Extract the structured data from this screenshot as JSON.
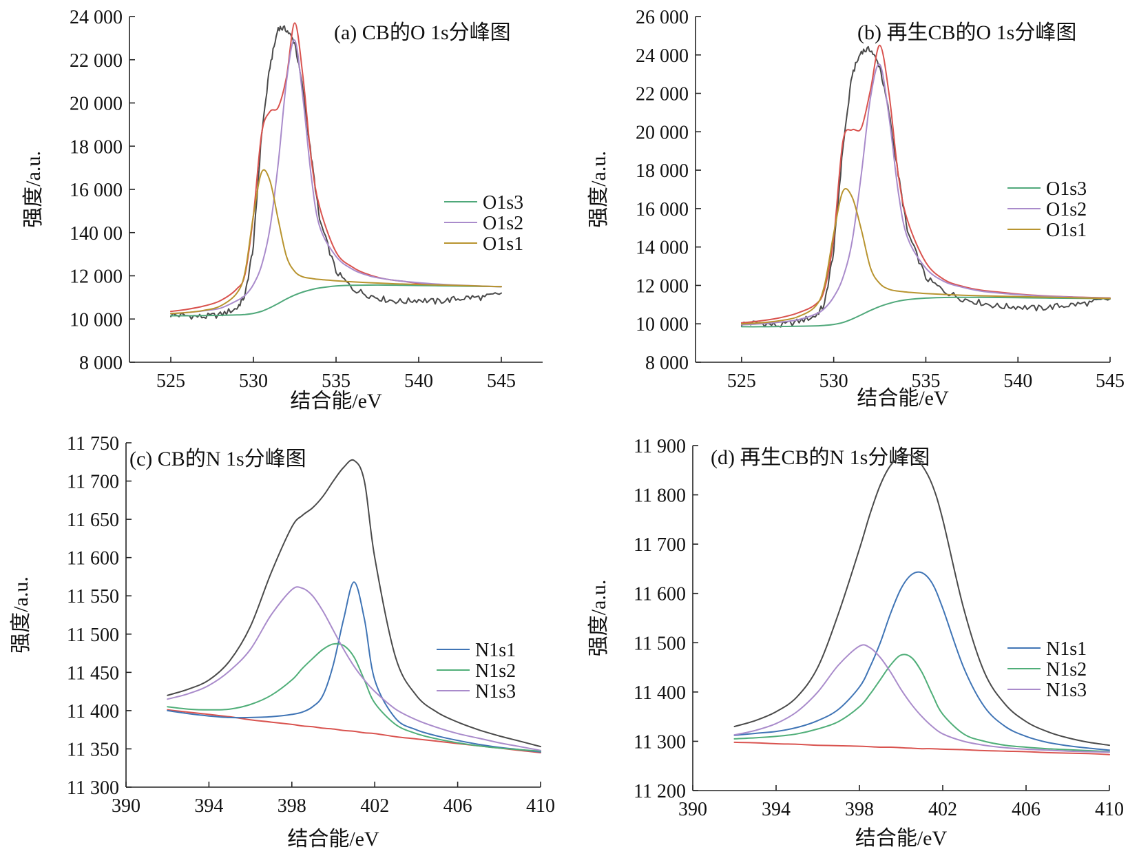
{
  "colors": {
    "fit": "#D9534F",
    "background": "#D9534F",
    "raw": "#4A4A4A",
    "O1s1": "#B8942F",
    "O1s2": "#A98BCB",
    "O1s3": "#4FA87A",
    "N1s1": "#3F74B5",
    "N1s2": "#4FAE78",
    "N1s3": "#A98BCB",
    "envelope": "#4A4A4A"
  },
  "chart_data": [
    {
      "id": "a",
      "type": "line",
      "title": "(a)  CB的O 1s分峰图",
      "xlabel": "结合能/eV",
      "ylabel": "强度/a.u.",
      "xlim": [
        522.5,
        547.5
      ],
      "ylim": [
        8000,
        24000
      ],
      "xticks": [
        525,
        530,
        535,
        540,
        545
      ],
      "xtick_labels": [
        "525",
        "530",
        "535",
        "540",
        "545"
      ],
      "yticks": [
        8000,
        10000,
        12000,
        14000,
        16000,
        18000,
        20000,
        22000,
        24000
      ],
      "ytick_labels": [
        "8 000",
        "10 000",
        "12 000",
        "140 00",
        "16 000",
        "18 000",
        "20 000",
        "22 000",
        "24 000"
      ],
      "legend": [
        "O1s3",
        "O1s2",
        "O1s1"
      ],
      "legend_position": "right-middle",
      "x": [
        525,
        526,
        527,
        528,
        529,
        529.5,
        530,
        530.5,
        531,
        531.5,
        532,
        532.5,
        533,
        533.5,
        534,
        535,
        536,
        537,
        538,
        539,
        540,
        541,
        542,
        543,
        544,
        545
      ],
      "series": [
        {
          "name": "Raw",
          "color_key": "raw",
          "values": [
            10200,
            10150,
            10100,
            10200,
            10500,
            11100,
            13400,
            18600,
            21700,
            23500,
            23400,
            22800,
            20600,
            17500,
            14600,
            12200,
            11400,
            11100,
            10900,
            10800,
            10900,
            10800,
            10900,
            11000,
            11000,
            11200
          ]
        },
        {
          "name": "Fit",
          "color_key": "fit",
          "values": [
            10350,
            10450,
            10600,
            10850,
            11400,
            12100,
            14800,
            18600,
            19600,
            19800,
            21200,
            23700,
            21200,
            17400,
            15200,
            13100,
            12400,
            12050,
            11850,
            11750,
            11650,
            11600,
            11560,
            11530,
            11510,
            11500
          ]
        },
        {
          "name": "O1s3",
          "color_key": "O1s3",
          "values": [
            10150,
            10150,
            10160,
            10170,
            10190,
            10210,
            10260,
            10360,
            10520,
            10720,
            10930,
            11110,
            11250,
            11360,
            11440,
            11530,
            11560,
            11570,
            11570,
            11560,
            11550,
            11540,
            11530,
            11520,
            11510,
            11500
          ]
        },
        {
          "name": "O1s2",
          "color_key": "O1s2",
          "values": [
            10250,
            10300,
            10380,
            10500,
            10850,
            11100,
            11600,
            12500,
            14200,
            17200,
            21000,
            22900,
            20200,
            16600,
            14300,
            12900,
            12300,
            12000,
            11850,
            11750,
            11680,
            11620,
            11580,
            11550,
            11520,
            11500
          ]
        },
        {
          "name": "O1s1",
          "color_key": "O1s1",
          "values": [
            10250,
            10300,
            10400,
            10600,
            11200,
            12200,
            14800,
            16800,
            16400,
            14600,
            12900,
            12200,
            11950,
            11880,
            11830,
            11770,
            11720,
            11680,
            11650,
            11620,
            11600,
            11580,
            11560,
            11540,
            11520,
            11500
          ]
        }
      ]
    },
    {
      "id": "b",
      "type": "line",
      "title": "(b)  再生CB的O 1s分峰图",
      "xlabel": "结合能/eV",
      "ylabel": "强度/a.u.",
      "xlim": [
        522.5,
        545
      ],
      "ylim": [
        8000,
        26000
      ],
      "xticks": [
        525,
        530,
        535,
        540,
        545
      ],
      "xtick_labels": [
        "525",
        "530",
        "535",
        "540",
        "545"
      ],
      "yticks": [
        8000,
        10000,
        12000,
        14000,
        16000,
        18000,
        20000,
        22000,
        24000,
        26000
      ],
      "ytick_labels": [
        "8 000",
        "10 000",
        "12 000",
        "14 000",
        "16 000",
        "18 000",
        "20 000",
        "22 000",
        "24 000",
        "26 000"
      ],
      "legend": [
        "O1s3",
        "O1s2",
        "O1s1"
      ],
      "legend_position": "right-middle",
      "x": [
        525,
        526,
        527,
        528,
        529,
        529.5,
        530,
        530.5,
        531,
        531.5,
        532,
        532.5,
        533,
        533.5,
        534,
        535,
        536,
        537,
        538,
        539,
        540,
        541,
        542,
        543,
        544,
        545
      ],
      "series": [
        {
          "name": "Raw",
          "color_key": "raw",
          "values": [
            10000,
            10050,
            9900,
            10100,
            10400,
            11000,
            13800,
            19200,
            23000,
            24200,
            24300,
            23400,
            21000,
            17800,
            14800,
            12400,
            11700,
            11300,
            11100,
            10900,
            10900,
            10800,
            10900,
            11000,
            11100,
            11300
          ]
        },
        {
          "name": "Fit",
          "color_key": "fit",
          "values": [
            10050,
            10150,
            10300,
            10550,
            11000,
            11800,
            14500,
            19500,
            20100,
            20200,
            22200,
            24500,
            22000,
            17800,
            15400,
            13200,
            12300,
            11950,
            11750,
            11650,
            11550,
            11480,
            11430,
            11400,
            11370,
            11350
          ]
        },
        {
          "name": "O1s3",
          "color_key": "O1s3",
          "values": [
            9850,
            9850,
            9860,
            9870,
            9890,
            9920,
            9970,
            10070,
            10250,
            10470,
            10700,
            10900,
            11060,
            11180,
            11260,
            11340,
            11370,
            11380,
            11380,
            11370,
            11360,
            11350,
            11340,
            11330,
            11320,
            11310
          ]
        },
        {
          "name": "O1s2",
          "color_key": "O1s2",
          "values": [
            9950,
            10000,
            10080,
            10200,
            10500,
            10800,
            11400,
            12400,
            14300,
            17800,
            21800,
            23500,
            20800,
            16900,
            14500,
            12900,
            12200,
            11900,
            11700,
            11600,
            11520,
            11460,
            11420,
            11390,
            11360,
            11340
          ]
        },
        {
          "name": "O1s1",
          "color_key": "O1s1",
          "values": [
            10000,
            10050,
            10150,
            10350,
            10900,
            12000,
            14700,
            16900,
            16600,
            14900,
            12900,
            12100,
            11800,
            11700,
            11650,
            11580,
            11530,
            11490,
            11460,
            11440,
            11420,
            11400,
            11380,
            11360,
            11340,
            11320
          ]
        }
      ]
    },
    {
      "id": "c",
      "type": "line",
      "title": "(c)  CB的N 1s分峰图",
      "xlabel": "结合能/eV",
      "ylabel": "强度/a.u.",
      "xlim": [
        390,
        410
      ],
      "ylim": [
        11300,
        11750
      ],
      "xticks": [
        390,
        394,
        398,
        402,
        406,
        410
      ],
      "xtick_labels": [
        "390",
        "394",
        "398",
        "402",
        "406",
        "410"
      ],
      "yticks": [
        11300,
        11350,
        11400,
        11450,
        11500,
        11550,
        11600,
        11650,
        11700,
        11750
      ],
      "ytick_labels": [
        "11 300",
        "11 350",
        "11 400",
        "11 450",
        "11 500",
        "11 550",
        "11 600",
        "11 650",
        "11 700",
        "11 750"
      ],
      "legend": [
        "N1s1",
        "N1s2",
        "N1s3"
      ],
      "legend_position": "right-middle",
      "x": [
        392,
        393,
        394,
        395,
        396,
        397,
        398,
        398.5,
        399,
        399.5,
        400,
        400.5,
        401,
        401.5,
        402,
        403,
        404,
        405,
        406,
        407,
        408,
        409,
        410
      ],
      "series": [
        {
          "name": "Envelope",
          "color_key": "envelope",
          "values": [
            11420,
            11428,
            11440,
            11465,
            11510,
            11580,
            11640,
            11655,
            11665,
            11680,
            11700,
            11718,
            11727,
            11700,
            11600,
            11470,
            11420,
            11398,
            11385,
            11375,
            11367,
            11360,
            11353
          ]
        },
        {
          "name": "Background",
          "color_key": "background",
          "values": [
            11401,
            11398,
            11395,
            11392,
            11388,
            11385,
            11382,
            11380,
            11379,
            11377,
            11376,
            11374,
            11373,
            11371,
            11370,
            11366,
            11363,
            11360,
            11357,
            11354,
            11351,
            11348,
            11345
          ]
        },
        {
          "name": "N1s1",
          "color_key": "N1s1",
          "values": [
            11400,
            11396,
            11393,
            11391,
            11391,
            11392,
            11395,
            11398,
            11405,
            11420,
            11460,
            11520,
            11568,
            11520,
            11440,
            11390,
            11375,
            11367,
            11361,
            11356,
            11352,
            11349,
            11346
          ]
        },
        {
          "name": "N1s2",
          "color_key": "N1s2",
          "values": [
            11405,
            11402,
            11401,
            11402,
            11408,
            11420,
            11440,
            11455,
            11468,
            11480,
            11487,
            11485,
            11470,
            11440,
            11410,
            11382,
            11370,
            11363,
            11358,
            11354,
            11351,
            11349,
            11347
          ]
        },
        {
          "name": "N1s3",
          "color_key": "N1s3",
          "values": [
            11415,
            11422,
            11433,
            11452,
            11480,
            11525,
            11558,
            11560,
            11550,
            11530,
            11505,
            11480,
            11458,
            11440,
            11425,
            11402,
            11388,
            11378,
            11370,
            11364,
            11358,
            11353,
            11348
          ]
        }
      ]
    },
    {
      "id": "d",
      "type": "line",
      "title": "(d)  再生CB的N 1s分峰图",
      "xlabel": "结合能/eV",
      "ylabel": "强度/a.u.",
      "xlim": [
        390,
        410
      ],
      "ylim": [
        11200,
        11900
      ],
      "xticks": [
        390,
        394,
        398,
        402,
        406,
        410
      ],
      "xtick_labels": [
        "390",
        "394",
        "398",
        "402",
        "406",
        "410"
      ],
      "yticks": [
        11200,
        11300,
        11400,
        11500,
        11600,
        11700,
        11800,
        11900
      ],
      "ytick_labels": [
        "11 200",
        "11 300",
        "11 400",
        "11 500",
        "11 600",
        "11 700",
        "11 800",
        "11 900"
      ],
      "legend": [
        "N1s1",
        "N1s2",
        "N1s3"
      ],
      "legend_position": "right-middle",
      "x": [
        392,
        393,
        394,
        395,
        396,
        397,
        398,
        398.5,
        399,
        399.5,
        400,
        400.5,
        401,
        401.5,
        402,
        403,
        404,
        405,
        406,
        407,
        408,
        409,
        410
      ],
      "series": [
        {
          "name": "Envelope",
          "color_key": "envelope",
          "values": [
            11330,
            11342,
            11360,
            11390,
            11450,
            11560,
            11690,
            11760,
            11820,
            11860,
            11878,
            11880,
            11860,
            11820,
            11750,
            11570,
            11440,
            11375,
            11340,
            11320,
            11307,
            11298,
            11292
          ]
        },
        {
          "name": "Background",
          "color_key": "background",
          "values": [
            11298,
            11297,
            11295,
            11294,
            11292,
            11291,
            11290,
            11289,
            11288,
            11288,
            11287,
            11286,
            11285,
            11285,
            11284,
            11283,
            11281,
            11280,
            11279,
            11277,
            11276,
            11275,
            11273
          ]
        },
        {
          "name": "N1s1",
          "color_key": "N1s1",
          "values": [
            11312,
            11316,
            11320,
            11328,
            11342,
            11365,
            11410,
            11450,
            11500,
            11560,
            11610,
            11638,
            11642,
            11620,
            11570,
            11450,
            11370,
            11330,
            11310,
            11298,
            11291,
            11286,
            11282
          ]
        },
        {
          "name": "N1s2",
          "color_key": "N1s2",
          "values": [
            11305,
            11307,
            11310,
            11315,
            11325,
            11340,
            11370,
            11395,
            11425,
            11455,
            11475,
            11470,
            11440,
            11395,
            11355,
            11315,
            11300,
            11292,
            11288,
            11285,
            11283,
            11281,
            11279
          ]
        },
        {
          "name": "N1s3",
          "color_key": "N1s3",
          "values": [
            11313,
            11322,
            11336,
            11360,
            11400,
            11455,
            11493,
            11490,
            11470,
            11440,
            11405,
            11375,
            11350,
            11330,
            11315,
            11300,
            11292,
            11287,
            11284,
            11282,
            11280,
            11279,
            11278
          ]
        }
      ]
    }
  ]
}
